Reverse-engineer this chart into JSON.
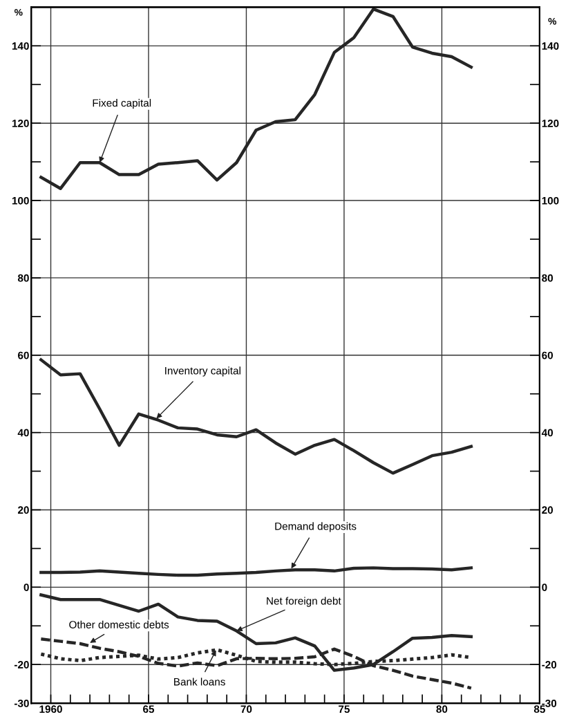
{
  "chart_data": {
    "type": "line",
    "x": [
      1959.5,
      1960.5,
      1961.5,
      1962.5,
      1963.5,
      1964.5,
      1965.5,
      1966.5,
      1967.5,
      1968.5,
      1969.5,
      1970.5,
      1971.5,
      1972.5,
      1973.5,
      1974.5,
      1975.5,
      1976.5,
      1977.5,
      1978.5,
      1979.5,
      1980.5,
      1981.5
    ],
    "series": [
      {
        "color": "#262626",
        "line_style": "solid",
        "values": [
          106.0,
          103.1,
          109.8,
          109.8,
          106.7,
          106.7,
          109.4,
          109.8,
          110.3,
          105.3,
          109.8,
          118.2,
          120.4,
          120.9,
          127.4,
          138.3,
          142.1,
          149.5,
          147.6,
          139.7,
          138.1,
          137.2,
          134.5
        ]
      },
      {
        "color": "#262626",
        "line_style": "solid",
        "values": [
          58.8,
          54.9,
          55.2,
          46.1,
          36.7,
          44.8,
          43.2,
          41.2,
          40.9,
          39.4,
          38.9,
          40.7,
          37.3,
          34.4,
          36.7,
          38.2,
          35.3,
          32.2,
          29.5,
          31.7,
          34.0,
          34.9,
          36.4
        ]
      },
      {
        "color": "#262626",
        "line_style": "solid",
        "values": [
          3.8,
          3.8,
          3.9,
          4.2,
          3.9,
          3.6,
          3.3,
          3.1,
          3.1,
          3.4,
          3.6,
          3.8,
          4.2,
          4.5,
          4.5,
          4.2,
          4.9,
          5.0,
          4.8,
          4.8,
          4.7,
          4.5,
          5.0
        ]
      },
      {
        "color": "#262626",
        "line_style": "solid",
        "values": [
          -2.0,
          -3.2,
          -3.2,
          -3.2,
          -4.7,
          -6.2,
          -4.4,
          -7.7,
          -8.6,
          -8.8,
          -11.3,
          -14.6,
          -14.4,
          -13.1,
          -15.2,
          -21.5,
          -20.9,
          -20.0,
          -16.7,
          -13.2,
          -13.0,
          -12.5,
          -12.8
        ]
      },
      {
        "color": "#262626",
        "line_style": "dashed",
        "values": [
          -13.4,
          -14.0,
          -14.6,
          -15.8,
          -16.7,
          -17.9,
          -19.7,
          -20.4,
          -19.6,
          -20.3,
          -18.5,
          -18.4,
          -18.5,
          -18.4,
          -18.0,
          -16.0,
          -17.9,
          -20.3,
          -21.5,
          -23.0,
          -23.9,
          -24.8,
          -26.1
        ]
      },
      {
        "color": "#262626",
        "line_style": "dotted",
        "values": [
          -17.3,
          -18.5,
          -19.0,
          -18.2,
          -17.9,
          -17.6,
          -18.6,
          -18.2,
          -17.0,
          -16.2,
          -17.6,
          -19.2,
          -19.4,
          -19.4,
          -19.8,
          -20.0,
          -19.7,
          -19.2,
          -19.0,
          -18.6,
          -18.2,
          -17.5,
          -18.2
        ]
      }
    ],
    "annotations": [
      {
        "text": "Fixed capital",
        "x": 1962.5,
        "y": 109.8
      },
      {
        "text": "Inventory capital",
        "x": 1965.4,
        "y": 43.6
      },
      {
        "text": "Demand deposits",
        "x": 1972.3,
        "y": 4.8
      },
      {
        "text": "Net foreign debt",
        "x": 1969.5,
        "y": -11.3
      },
      {
        "text": "Other domestic debts",
        "x": 1962.0,
        "y": -14.4
      },
      {
        "text": "Bank loans",
        "x": 1968.45,
        "y": -16.3
      }
    ],
    "ylabel": "%",
    "y2label": "%",
    "xlim": [
      1959,
      1985
    ],
    "xticks": [
      1960,
      {
        "value": 1961,
        "label": null
      },
      {
        "value": 1962,
        "label": null
      },
      {
        "value": 1963,
        "label": null
      },
      {
        "value": 1964,
        "label": null
      },
      {
        "value": 1965,
        "label": "65"
      },
      {
        "value": 1966,
        "label": null
      },
      {
        "value": 1967,
        "label": null
      },
      {
        "value": 1968,
        "label": null
      },
      {
        "value": 1969,
        "label": null
      },
      {
        "value": 1970,
        "label": "70"
      },
      {
        "value": 1971,
        "label": null
      },
      {
        "value": 1972,
        "label": null
      },
      {
        "value": 1973,
        "label": null
      },
      {
        "value": 1974,
        "label": null
      },
      {
        "value": 1975,
        "label": "75"
      },
      {
        "value": 1976,
        "label": null
      },
      {
        "value": 1977,
        "label": null
      },
      {
        "value": 1978,
        "label": null
      },
      {
        "value": 1979,
        "label": null
      },
      {
        "value": 1980,
        "label": "80"
      },
      {
        "value": 1981,
        "label": null
      },
      {
        "value": 1982,
        "label": null
      },
      {
        "value": 1983,
        "label": null
      },
      {
        "value": 1984,
        "label": null
      },
      {
        "value": 1985,
        "label": "85"
      }
    ],
    "ylim": [
      -30,
      150
    ],
    "yticks": [
      -30,
      -20,
      {
        "value": -10,
        "label": null
      },
      0,
      {
        "value": 10,
        "label": null
      },
      20,
      {
        "value": 30,
        "label": null
      },
      40,
      {
        "value": 50,
        "label": null
      },
      60,
      {
        "value": 70,
        "label": null
      },
      80,
      {
        "value": 90,
        "label": null
      },
      100,
      {
        "value": 110,
        "label": null
      },
      120,
      {
        "value": 130,
        "label": null
      },
      140
    ],
    "y2lim": [
      -30,
      150
    ],
    "y2ticks": [
      -30,
      -20,
      {
        "value": -10,
        "label": null
      },
      0,
      {
        "value": 10,
        "label": null
      },
      20,
      {
        "value": 30,
        "label": null
      },
      40,
      {
        "value": 50,
        "label": null
      },
      60,
      {
        "value": 70,
        "label": null
      },
      80,
      {
        "value": 90,
        "label": null
      },
      100,
      {
        "value": 110,
        "label": null
      },
      120,
      {
        "value": 130,
        "label": null
      },
      140
    ],
    "grid": true,
    "legend": false
  }
}
